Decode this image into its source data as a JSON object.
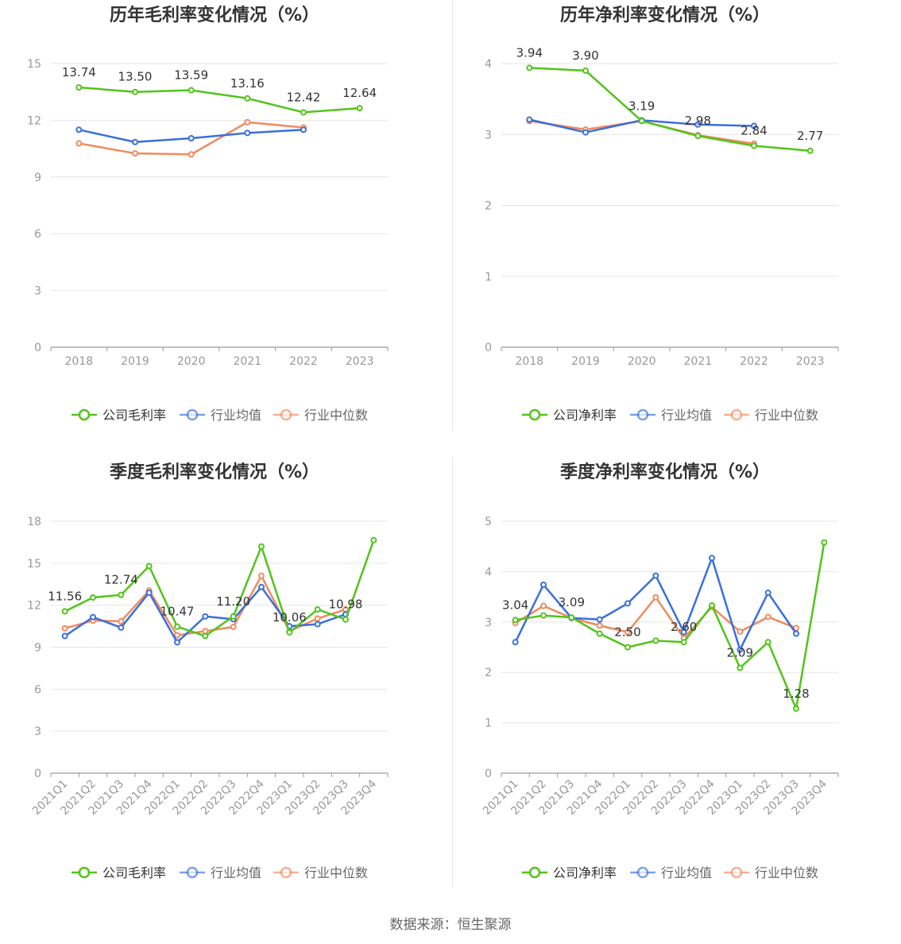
{
  "footer": {
    "source": "数据来源：恒生聚源"
  },
  "colors": {
    "company": "#52c41a",
    "avg": "#3a6fdc",
    "median": "#f08a5d",
    "grid": "#e6e6e6",
    "axis": "#999999",
    "axis_label": "#999999",
    "label": "#333333",
    "title": "#333333"
  },
  "chart_data": [
    {
      "type": "line",
      "title": "历年毛利率变化情况（%）",
      "categories": [
        "2018",
        "2019",
        "2020",
        "2021",
        "2022",
        "2023"
      ],
      "ylim": [
        0,
        15
      ],
      "yticks": [
        0,
        3,
        6,
        9,
        12,
        15
      ],
      "grid": true,
      "legend_position": "bottom",
      "series": [
        {
          "name": "公司毛利率",
          "color": "#52c41a",
          "values": [
            13.74,
            13.5,
            13.59,
            13.16,
            12.42,
            12.64
          ]
        },
        {
          "name": "行业均值",
          "color": "#3a6fdc",
          "values": [
            11.5,
            10.85,
            11.05,
            11.33,
            11.5,
            null
          ]
        },
        {
          "name": "行业中位数",
          "color": "#f08a5d",
          "values": [
            10.78,
            10.25,
            10.2,
            11.9,
            11.62,
            null
          ]
        }
      ],
      "data_labels": {
        "series": 0,
        "indices": [
          0,
          1,
          2,
          3,
          4,
          5
        ],
        "texts": [
          "13.74",
          "13.50",
          "13.59",
          "13.16",
          "12.42",
          "12.64"
        ]
      }
    },
    {
      "type": "line",
      "title": "历年净利率变化情况（%）",
      "categories": [
        "2018",
        "2019",
        "2020",
        "2021",
        "2022",
        "2023"
      ],
      "ylim": [
        0,
        4
      ],
      "yticks": [
        0,
        1,
        2,
        3,
        4
      ],
      "grid": true,
      "legend_position": "bottom",
      "series": [
        {
          "name": "公司净利率",
          "color": "#52c41a",
          "values": [
            3.94,
            3.9,
            3.19,
            2.98,
            2.84,
            2.77
          ]
        },
        {
          "name": "行业均值",
          "color": "#3a6fdc",
          "values": [
            3.21,
            3.03,
            3.2,
            3.14,
            3.12,
            null
          ]
        },
        {
          "name": "行业中位数",
          "color": "#f08a5d",
          "values": [
            3.19,
            3.07,
            3.19,
            2.99,
            2.87,
            null
          ]
        }
      ],
      "data_labels": {
        "series": 0,
        "indices": [
          0,
          1,
          2,
          3,
          4,
          5
        ],
        "texts": [
          "3.94",
          "3.90",
          "3.19",
          "2.98",
          "2.84",
          "2.77"
        ]
      }
    },
    {
      "type": "line",
      "title": "季度毛利率变化情况（%）",
      "categories": [
        "2021Q1",
        "2021Q2",
        "2021Q3",
        "2021Q4",
        "2022Q1",
        "2022Q2",
        "2022Q3",
        "2022Q4",
        "2023Q1",
        "2023Q2",
        "2023Q3",
        "2023Q4"
      ],
      "ylim": [
        0,
        18
      ],
      "yticks": [
        0,
        3,
        6,
        9,
        12,
        15,
        18
      ],
      "grid": true,
      "legend_position": "bottom",
      "series": [
        {
          "name": "公司毛利率",
          "color": "#52c41a",
          "values": [
            11.56,
            12.55,
            12.74,
            14.8,
            10.47,
            9.8,
            11.2,
            16.2,
            10.06,
            11.7,
            10.98,
            16.65
          ]
        },
        {
          "name": "行业均值",
          "color": "#3a6fdc",
          "values": [
            9.8,
            11.15,
            10.4,
            12.9,
            9.35,
            11.2,
            11.0,
            13.3,
            10.5,
            10.65,
            11.35,
            null
          ]
        },
        {
          "name": "行业中位数",
          "color": "#f08a5d",
          "values": [
            10.35,
            10.9,
            10.85,
            13.05,
            9.85,
            10.15,
            10.45,
            14.1,
            10.15,
            11.05,
            11.7,
            null
          ]
        }
      ],
      "data_labels": {
        "series": 0,
        "indices": [
          0,
          2,
          4,
          6,
          8,
          10
        ],
        "texts": [
          "11.56",
          "12.74",
          "10.47",
          "11.20",
          "10.06",
          "10.98"
        ]
      }
    },
    {
      "type": "line",
      "title": "季度净利率变化情况（%）",
      "categories": [
        "2021Q1",
        "2021Q2",
        "2021Q3",
        "2021Q4",
        "2022Q1",
        "2022Q2",
        "2022Q3",
        "2022Q4",
        "2023Q1",
        "2023Q2",
        "2023Q3",
        "2023Q4"
      ],
      "ylim": [
        0,
        5
      ],
      "yticks": [
        0,
        1,
        2,
        3,
        4,
        5
      ],
      "grid": true,
      "legend_position": "bottom",
      "series": [
        {
          "name": "公司净利率",
          "color": "#52c41a",
          "values": [
            3.04,
            3.13,
            3.09,
            2.77,
            2.5,
            2.63,
            2.6,
            3.33,
            2.09,
            2.6,
            1.28,
            4.58
          ]
        },
        {
          "name": "行业均值",
          "color": "#3a6fdc",
          "values": [
            2.6,
            3.74,
            3.08,
            3.05,
            3.37,
            3.92,
            2.8,
            4.27,
            2.45,
            3.58,
            2.77,
            null
          ]
        },
        {
          "name": "行业中位数",
          "color": "#f08a5d",
          "values": [
            2.98,
            3.32,
            3.08,
            2.93,
            2.8,
            3.49,
            2.68,
            3.3,
            2.81,
            3.1,
            2.88,
            null
          ]
        }
      ],
      "data_labels": {
        "series": 0,
        "indices": [
          0,
          2,
          4,
          6,
          8,
          10
        ],
        "texts": [
          "3.04",
          "3.09",
          "2.50",
          "2.60",
          "2.09",
          "1.28"
        ]
      }
    }
  ]
}
